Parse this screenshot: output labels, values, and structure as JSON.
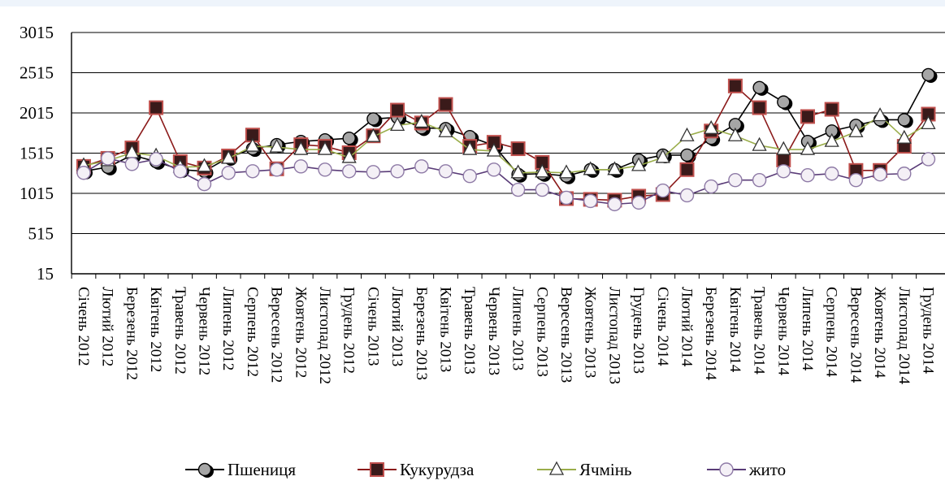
{
  "chart_data": {
    "type": "line",
    "title": "",
    "xlabel": "",
    "ylabel": "",
    "ylim": [
      15,
      3015
    ],
    "yticks": [
      15,
      515,
      1015,
      1515,
      2015,
      2515,
      3015
    ],
    "grid": true,
    "legend_position": "bottom",
    "categories": [
      "Січень 2012",
      "Лютий 2012",
      "Березень 2012",
      "Квітень 2012",
      "Травень 2012",
      "Червень 2012",
      "Липень 2012",
      "Серпень 2012",
      "Вересень 2012",
      "Жовтень 2012",
      "Листопад 2012",
      "Грудень 2012",
      "Січень 2013",
      "Лютий 2013",
      "Березень 2013",
      "Квітень 2013",
      "Травень 2013",
      "Червень 2013",
      "Липень 2013",
      "Серпень 2013",
      "Вересень 2013",
      "Жовтень 2013",
      "Листопад 2013",
      "Грудень 2013",
      "Січень 2014",
      "Лютий 2014",
      "Березень 2014",
      "Квітень 2014",
      "Травень 2014",
      "Червень 2014",
      "Липень 2014",
      "Серпень 2014",
      "Вересень 2014",
      "Жовтень 2014",
      "Листопад 2014",
      "Грудень 2014"
    ],
    "series": [
      {
        "name": "Пшениця",
        "color": "#000000",
        "marker": "circle-gray",
        "values": [
          1290,
          1340,
          1490,
          1410,
          1310,
          1290,
          1460,
          1570,
          1620,
          1660,
          1680,
          1700,
          1940,
          1960,
          1830,
          1820,
          1720,
          1610,
          1250,
          1260,
          1230,
          1310,
          1310,
          1430,
          1490,
          1490,
          1700,
          1870,
          2330,
          2150,
          1660,
          1790,
          1860,
          1930,
          1930,
          2490
        ]
      },
      {
        "name": "Кукурудза",
        "color": "#8b1a1a",
        "marker": "square-darkred",
        "values": [
          1350,
          1450,
          1580,
          2080,
          1410,
          1330,
          1480,
          1740,
          1320,
          1620,
          1600,
          1520,
          1730,
          2050,
          1890,
          2120,
          1600,
          1650,
          1570,
          1400,
          950,
          940,
          930,
          980,
          1000,
          1310,
          1790,
          2350,
          2080,
          1430,
          1970,
          2060,
          1300,
          1300,
          1600,
          2000
        ]
      },
      {
        "name": "Ячмінь",
        "color": "#9aad4a",
        "marker": "triangle-white",
        "values": [
          1360,
          1420,
          1520,
          1480,
          1340,
          1350,
          1450,
          1600,
          1590,
          1560,
          1560,
          1460,
          1720,
          1860,
          1900,
          1780,
          1560,
          1540,
          1270,
          1280,
          1270,
          1310,
          1310,
          1360,
          1460,
          1730,
          1820,
          1730,
          1610,
          1560,
          1560,
          1660,
          1780,
          1980,
          1700,
          1880
        ]
      },
      {
        "name": "жито",
        "color": "#5a3c78",
        "marker": "circle-white",
        "values": [
          1270,
          1450,
          1380,
          1440,
          1290,
          1130,
          1270,
          1290,
          1310,
          1350,
          1310,
          1290,
          1280,
          1290,
          1350,
          1290,
          1230,
          1310,
          1060,
          1060,
          960,
          920,
          880,
          900,
          1050,
          990,
          1100,
          1180,
          1180,
          1290,
          1240,
          1260,
          1180,
          1250,
          1260,
          1440
        ]
      }
    ]
  }
}
